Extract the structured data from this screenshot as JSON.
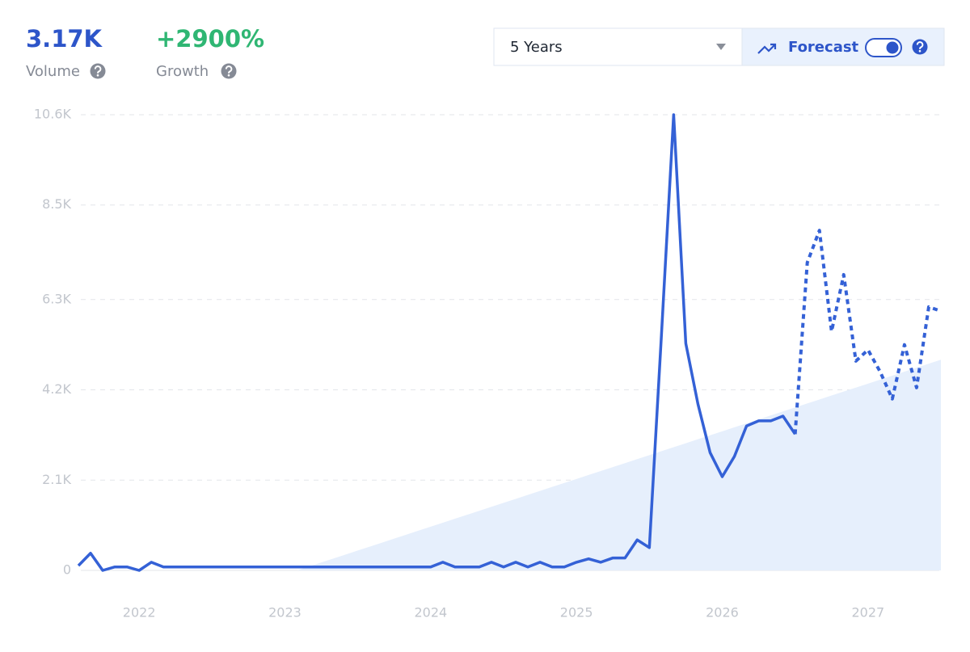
{
  "header": {
    "volume": {
      "value": "3.17K",
      "label": "Volume"
    },
    "growth": {
      "value": "+2900%",
      "label": "Growth"
    }
  },
  "controls": {
    "range": "5 Years",
    "forecast": "Forecast"
  },
  "chart_data": {
    "type": "line",
    "categories": [
      null,
      null,
      null,
      null,
      null,
      "2022",
      null,
      null,
      null,
      null,
      null,
      null,
      null,
      null,
      null,
      null,
      null,
      "2023",
      null,
      null,
      null,
      null,
      null,
      null,
      null,
      null,
      null,
      null,
      null,
      "2024",
      null,
      null,
      null,
      null,
      null,
      null,
      null,
      null,
      null,
      null,
      null,
      "2025",
      null,
      null,
      null,
      null,
      null,
      null,
      null,
      null,
      null,
      null,
      null,
      "2026",
      null,
      null,
      null,
      null,
      null,
      null,
      null,
      null,
      null,
      null,
      null,
      "2027",
      null,
      null,
      null,
      null,
      null,
      null
    ],
    "series": [
      {
        "color": "#3461d6",
        "values": [
          110,
          400,
          0,
          80,
          80,
          0,
          190,
          80,
          80,
          80,
          80,
          80,
          80,
          80,
          80,
          80,
          80,
          80,
          80,
          80,
          80,
          80,
          80,
          80,
          80,
          80,
          80,
          80,
          80,
          80,
          190,
          80,
          80,
          80,
          190,
          80,
          190,
          80,
          190,
          80,
          80,
          190,
          270,
          190,
          290,
          290,
          710,
          530,
          5500,
          10600,
          5280,
          3870,
          2740,
          2180,
          2650,
          3360,
          3480,
          3480,
          3590,
          3170,
          null,
          null,
          null,
          null,
          null,
          null,
          null,
          null,
          null,
          null,
          null,
          null
        ]
      },
      {
        "color": "#3461d6",
        "dashed": true,
        "values": [
          null,
          null,
          null,
          null,
          null,
          null,
          null,
          null,
          null,
          null,
          null,
          null,
          null,
          null,
          null,
          null,
          null,
          null,
          null,
          null,
          null,
          null,
          null,
          null,
          null,
          null,
          null,
          null,
          null,
          null,
          null,
          null,
          null,
          null,
          null,
          null,
          null,
          null,
          null,
          null,
          null,
          null,
          null,
          null,
          null,
          null,
          null,
          null,
          null,
          null,
          null,
          null,
          null,
          null,
          null,
          null,
          null,
          null,
          null,
          3170,
          7160,
          7910,
          5560,
          6880,
          4870,
          5130,
          4620,
          3990,
          5250,
          4250,
          6130,
          6030
        ]
      },
      {
        "color": "#e6effc",
        "area": true,
        "values": [
          0,
          0,
          0,
          0,
          0,
          0,
          0,
          0,
          0,
          0,
          0,
          0,
          0,
          0,
          0,
          0,
          0,
          0,
          0,
          92,
          185,
          277,
          370,
          462,
          555,
          647,
          740,
          832,
          925,
          1017,
          1109,
          1202,
          1294,
          1387,
          1479,
          1572,
          1664,
          1757,
          1849,
          1942,
          2034,
          2126,
          2219,
          2311,
          2404,
          2496,
          2589,
          2681,
          2774,
          2866,
          2958,
          3051,
          3143,
          3236,
          3328,
          3421,
          3513,
          3606,
          3698,
          3791,
          3883,
          3975,
          4068,
          4160,
          4253,
          4345,
          4438,
          4530,
          4623,
          4715,
          4808,
          4900
        ]
      }
    ],
    "ylim": [
      0,
      10600
    ],
    "yticks": [
      0,
      {
        "value": 2100,
        "label": "2.1K"
      },
      {
        "value": 4200,
        "label": "4.2K"
      },
      {
        "value": 6300,
        "label": "6.3K"
      },
      {
        "value": 8500,
        "label": "8.5K"
      },
      {
        "value": 10600,
        "label": "10.6K"
      }
    ],
    "grid": true
  }
}
